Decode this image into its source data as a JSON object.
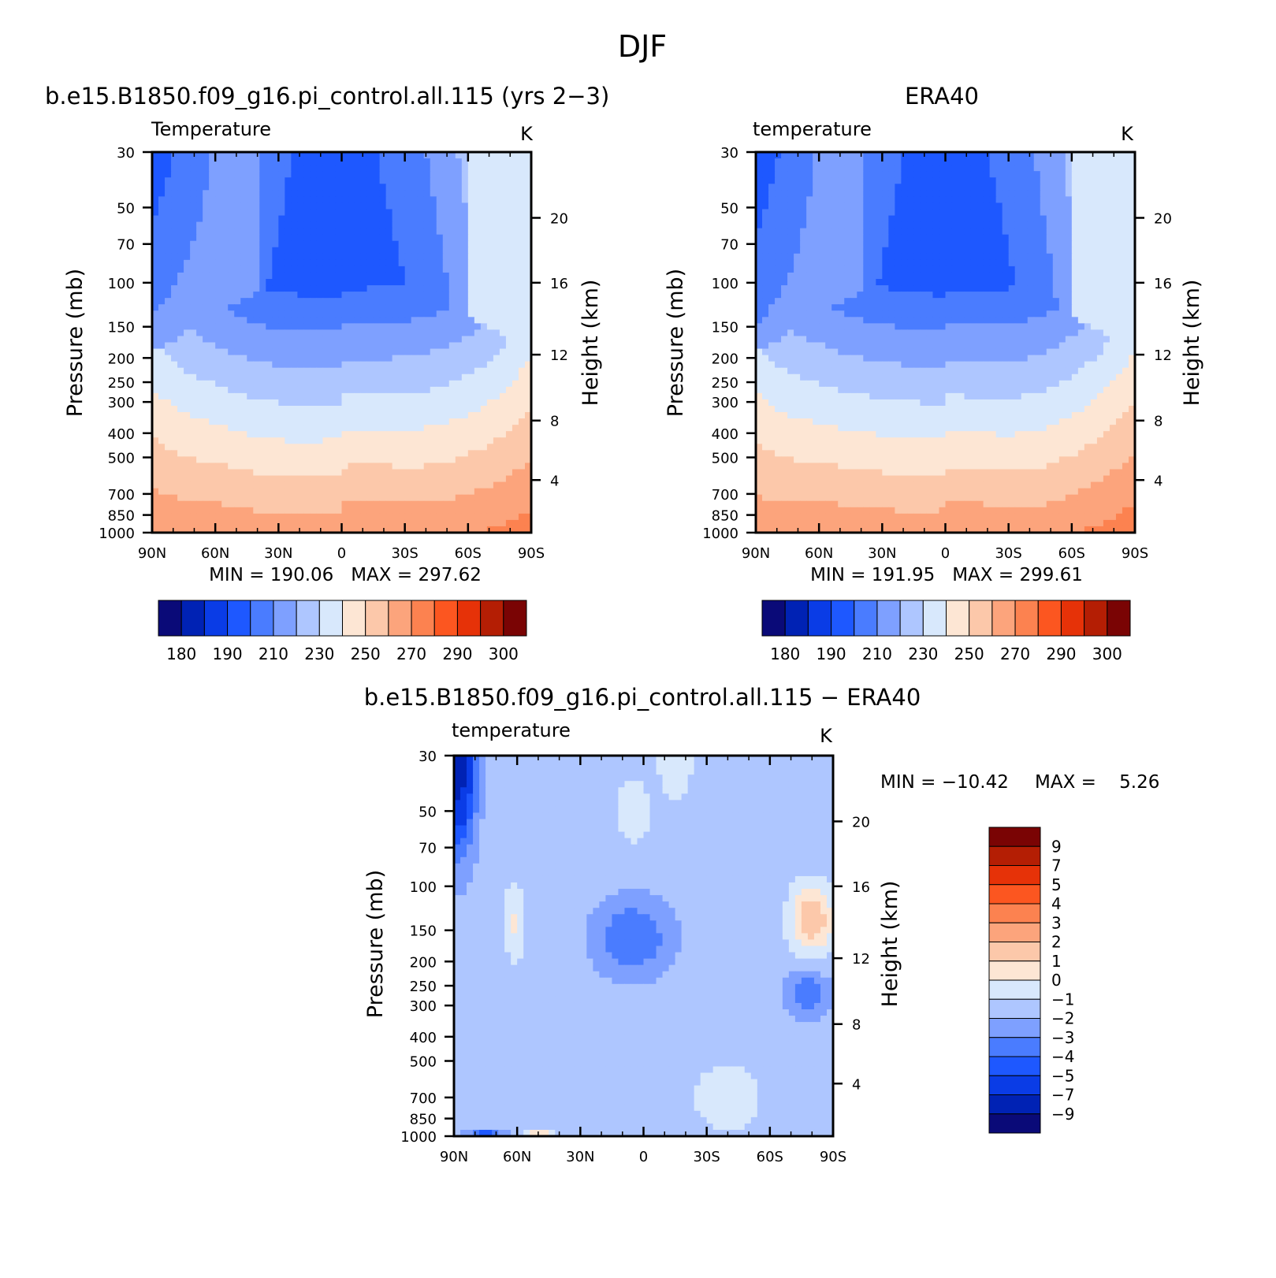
{
  "figure_title": "DJF",
  "chart_data": [
    {
      "type": "heatmap",
      "title": "b.e15.B1850.f09_g16.pi_control.all.115 (yrs 2−3)",
      "variable_label": "Temperature",
      "units": "K",
      "ylabel": "Pressure (mb)",
      "ylabel_right": "Height (km)",
      "x_ticks": [
        "90N",
        "60N",
        "30N",
        "0",
        "30S",
        "60S",
        "90S"
      ],
      "y_ticks": [
        "30",
        "50",
        "70",
        "100",
        "150",
        "200",
        "250",
        "300",
        "400",
        "500",
        "700",
        "850",
        "1000"
      ],
      "y_ticks_right": [
        "20",
        "16",
        "12",
        "8",
        "4"
      ],
      "stats": "MIN = 190.06   MAX = 297.62",
      "min": 190.06,
      "max": 297.62,
      "colorbar_labels": [
        "180",
        "190",
        "210",
        "230",
        "250",
        "270",
        "290",
        "300"
      ],
      "colors": [
        "#0a0a78",
        "#0022b4",
        "#0a3ce6",
        "#1e58ff",
        "#4a7cff",
        "#7ea0ff",
        "#aec6ff",
        "#d8e8fc",
        "#fde6d4",
        "#fcc8aa",
        "#fca47c",
        "#fc8250",
        "#fc5620",
        "#e63208",
        "#b41e04",
        "#7a0404"
      ],
      "levels": [
        180,
        185,
        190,
        200,
        210,
        220,
        230,
        240,
        250,
        260,
        270,
        280,
        290,
        295,
        300
      ]
    },
    {
      "type": "heatmap",
      "title": "ERA40",
      "variable_label": "temperature",
      "units": "K",
      "ylabel": "Pressure (mb)",
      "ylabel_right": "Height (km)",
      "x_ticks": [
        "90N",
        "60N",
        "30N",
        "0",
        "30S",
        "60S",
        "90S"
      ],
      "y_ticks": [
        "30",
        "50",
        "70",
        "100",
        "150",
        "200",
        "250",
        "300",
        "400",
        "500",
        "700",
        "850",
        "1000"
      ],
      "y_ticks_right": [
        "20",
        "16",
        "12",
        "8",
        "4"
      ],
      "stats": "MIN = 191.95   MAX = 299.61",
      "min": 191.95,
      "max": 299.61,
      "colorbar_labels": [
        "180",
        "190",
        "210",
        "230",
        "250",
        "270",
        "290",
        "300"
      ],
      "colors": [
        "#0a0a78",
        "#0022b4",
        "#0a3ce6",
        "#1e58ff",
        "#4a7cff",
        "#7ea0ff",
        "#aec6ff",
        "#d8e8fc",
        "#fde6d4",
        "#fcc8aa",
        "#fca47c",
        "#fc8250",
        "#fc5620",
        "#e63208",
        "#b41e04",
        "#7a0404"
      ],
      "levels": [
        180,
        185,
        190,
        200,
        210,
        220,
        230,
        240,
        250,
        260,
        270,
        280,
        290,
        295,
        300
      ]
    },
    {
      "type": "heatmap",
      "title": "b.e15.B1850.f09_g16.pi_control.all.115 − ERA40",
      "variable_label": "temperature",
      "units": "K",
      "ylabel": "Pressure (mb)",
      "ylabel_right": "Height (km)",
      "x_ticks": [
        "90N",
        "60N",
        "30N",
        "0",
        "30S",
        "60S",
        "90S"
      ],
      "y_ticks": [
        "30",
        "50",
        "70",
        "100",
        "150",
        "200",
        "250",
        "300",
        "400",
        "500",
        "700",
        "850",
        "1000"
      ],
      "y_ticks_right": [
        "20",
        "16",
        "12",
        "8",
        "4"
      ],
      "stats_min": "MIN = −10.42",
      "stats_max": "MAX =    5.26",
      "min": -10.42,
      "max": 5.26,
      "colorbar_labels": [
        "9",
        "7",
        "5",
        "4",
        "3",
        "2",
        "1",
        "0",
        "−1",
        "−2",
        "−3",
        "−4",
        "−5",
        "−7",
        "−9"
      ],
      "colors": [
        "#7a0404",
        "#b41e04",
        "#e63208",
        "#fc5620",
        "#fc8250",
        "#fca47c",
        "#fcc8aa",
        "#fde6d4",
        "#d8e8fc",
        "#aec6ff",
        "#7ea0ff",
        "#4a7cff",
        "#1e58ff",
        "#0a3ce6",
        "#0022b4",
        "#0a0a78"
      ]
    }
  ]
}
